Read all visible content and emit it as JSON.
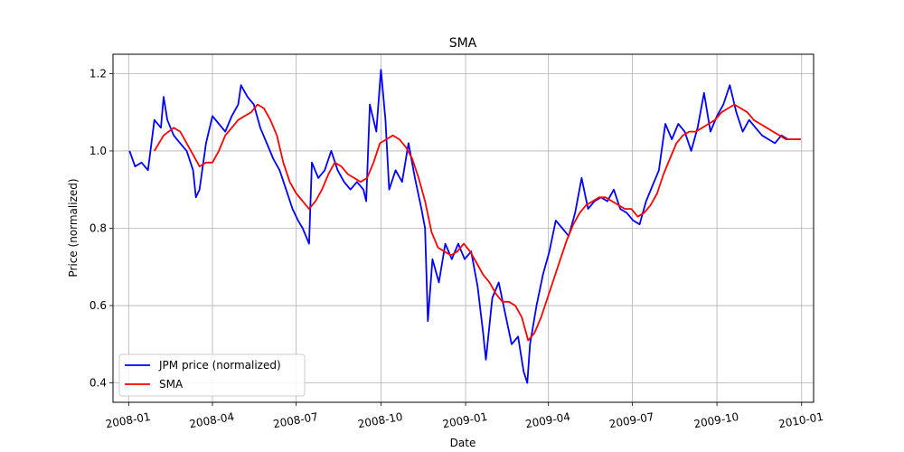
{
  "chart_data": {
    "type": "line",
    "title": "SMA",
    "xlabel": "Date",
    "ylabel": "Price (normalized)",
    "xlim": [
      "2007-12-15",
      "2010-01-14"
    ],
    "ylim": [
      0.35,
      1.25
    ],
    "x_ticks": [
      "2008-01",
      "2008-04",
      "2008-07",
      "2008-10",
      "2009-01",
      "2009-04",
      "2009-07",
      "2009-10",
      "2010-01"
    ],
    "y_ticks": [
      "0.4",
      "0.6",
      "0.8",
      "1.0",
      "1.2"
    ],
    "grid": true,
    "legend_position": "lower-left",
    "series": [
      {
        "name": "JPM price (normalized)",
        "color": "#0000ff",
        "points": [
          [
            "2008-01-02",
            1.0
          ],
          [
            "2008-01-08",
            0.96
          ],
          [
            "2008-01-15",
            0.97
          ],
          [
            "2008-01-22",
            0.95
          ],
          [
            "2008-01-29",
            1.08
          ],
          [
            "2008-02-05",
            1.06
          ],
          [
            "2008-02-08",
            1.14
          ],
          [
            "2008-02-12",
            1.08
          ],
          [
            "2008-02-19",
            1.04
          ],
          [
            "2008-02-26",
            1.02
          ],
          [
            "2008-03-04",
            1.0
          ],
          [
            "2008-03-11",
            0.95
          ],
          [
            "2008-03-14",
            0.88
          ],
          [
            "2008-03-18",
            0.9
          ],
          [
            "2008-03-25",
            1.02
          ],
          [
            "2008-04-01",
            1.09
          ],
          [
            "2008-04-08",
            1.07
          ],
          [
            "2008-04-15",
            1.05
          ],
          [
            "2008-04-22",
            1.09
          ],
          [
            "2008-04-29",
            1.12
          ],
          [
            "2008-05-02",
            1.17
          ],
          [
            "2008-05-09",
            1.14
          ],
          [
            "2008-05-16",
            1.12
          ],
          [
            "2008-05-23",
            1.06
          ],
          [
            "2008-05-30",
            1.02
          ],
          [
            "2008-06-06",
            0.98
          ],
          [
            "2008-06-13",
            0.95
          ],
          [
            "2008-06-20",
            0.9
          ],
          [
            "2008-06-27",
            0.85
          ],
          [
            "2008-07-03",
            0.82
          ],
          [
            "2008-07-08",
            0.8
          ],
          [
            "2008-07-15",
            0.76
          ],
          [
            "2008-07-18",
            0.97
          ],
          [
            "2008-07-25",
            0.93
          ],
          [
            "2008-08-01",
            0.95
          ],
          [
            "2008-08-08",
            1.0
          ],
          [
            "2008-08-15",
            0.95
          ],
          [
            "2008-08-22",
            0.92
          ],
          [
            "2008-08-29",
            0.9
          ],
          [
            "2008-09-05",
            0.92
          ],
          [
            "2008-09-12",
            0.9
          ],
          [
            "2008-09-15",
            0.87
          ],
          [
            "2008-09-19",
            1.12
          ],
          [
            "2008-09-26",
            1.05
          ],
          [
            "2008-10-01",
            1.21
          ],
          [
            "2008-10-06",
            1.08
          ],
          [
            "2008-10-10",
            0.9
          ],
          [
            "2008-10-17",
            0.95
          ],
          [
            "2008-10-24",
            0.92
          ],
          [
            "2008-10-31",
            1.02
          ],
          [
            "2008-11-07",
            0.93
          ],
          [
            "2008-11-14",
            0.85
          ],
          [
            "2008-11-18",
            0.8
          ],
          [
            "2008-11-21",
            0.56
          ],
          [
            "2008-11-26",
            0.72
          ],
          [
            "2008-12-03",
            0.66
          ],
          [
            "2008-12-10",
            0.76
          ],
          [
            "2008-12-17",
            0.72
          ],
          [
            "2008-12-24",
            0.76
          ],
          [
            "2008-12-31",
            0.72
          ],
          [
            "2009-01-07",
            0.74
          ],
          [
            "2009-01-14",
            0.65
          ],
          [
            "2009-01-20",
            0.53
          ],
          [
            "2009-01-23",
            0.46
          ],
          [
            "2009-01-30",
            0.62
          ],
          [
            "2009-02-06",
            0.66
          ],
          [
            "2009-02-13",
            0.58
          ],
          [
            "2009-02-20",
            0.5
          ],
          [
            "2009-02-27",
            0.52
          ],
          [
            "2009-03-05",
            0.43
          ],
          [
            "2009-03-09",
            0.4
          ],
          [
            "2009-03-12",
            0.5
          ],
          [
            "2009-03-19",
            0.6
          ],
          [
            "2009-03-26",
            0.68
          ],
          [
            "2009-04-02",
            0.74
          ],
          [
            "2009-04-09",
            0.82
          ],
          [
            "2009-04-16",
            0.8
          ],
          [
            "2009-04-23",
            0.78
          ],
          [
            "2009-04-30",
            0.84
          ],
          [
            "2009-05-07",
            0.93
          ],
          [
            "2009-05-14",
            0.85
          ],
          [
            "2009-05-21",
            0.87
          ],
          [
            "2009-05-28",
            0.88
          ],
          [
            "2009-06-04",
            0.87
          ],
          [
            "2009-06-11",
            0.9
          ],
          [
            "2009-06-18",
            0.85
          ],
          [
            "2009-06-25",
            0.84
          ],
          [
            "2009-07-02",
            0.82
          ],
          [
            "2009-07-09",
            0.81
          ],
          [
            "2009-07-16",
            0.87
          ],
          [
            "2009-07-23",
            0.91
          ],
          [
            "2009-07-30",
            0.95
          ],
          [
            "2009-08-06",
            1.07
          ],
          [
            "2009-08-13",
            1.03
          ],
          [
            "2009-08-20",
            1.07
          ],
          [
            "2009-08-27",
            1.05
          ],
          [
            "2009-09-03",
            1.0
          ],
          [
            "2009-09-10",
            1.06
          ],
          [
            "2009-09-17",
            1.15
          ],
          [
            "2009-09-24",
            1.05
          ],
          [
            "2009-10-01",
            1.09
          ],
          [
            "2009-10-08",
            1.12
          ],
          [
            "2009-10-15",
            1.17
          ],
          [
            "2009-10-22",
            1.1
          ],
          [
            "2009-10-29",
            1.05
          ],
          [
            "2009-11-05",
            1.08
          ],
          [
            "2009-11-12",
            1.06
          ],
          [
            "2009-11-19",
            1.04
          ],
          [
            "2009-11-26",
            1.03
          ],
          [
            "2009-12-03",
            1.02
          ],
          [
            "2009-12-10",
            1.04
          ],
          [
            "2009-12-17",
            1.03
          ],
          [
            "2009-12-31",
            1.03
          ]
        ]
      },
      {
        "name": "SMA",
        "color": "#ff0000",
        "points": [
          [
            "2008-01-29",
            1.0
          ],
          [
            "2008-02-08",
            1.04
          ],
          [
            "2008-02-19",
            1.06
          ],
          [
            "2008-02-26",
            1.05
          ],
          [
            "2008-03-04",
            1.02
          ],
          [
            "2008-03-11",
            0.99
          ],
          [
            "2008-03-18",
            0.96
          ],
          [
            "2008-03-25",
            0.97
          ],
          [
            "2008-04-01",
            0.97
          ],
          [
            "2008-04-08",
            1.0
          ],
          [
            "2008-04-15",
            1.04
          ],
          [
            "2008-04-22",
            1.06
          ],
          [
            "2008-04-29",
            1.08
          ],
          [
            "2008-05-06",
            1.09
          ],
          [
            "2008-05-13",
            1.1
          ],
          [
            "2008-05-20",
            1.12
          ],
          [
            "2008-05-27",
            1.11
          ],
          [
            "2008-06-03",
            1.08
          ],
          [
            "2008-06-10",
            1.04
          ],
          [
            "2008-06-17",
            0.97
          ],
          [
            "2008-06-24",
            0.92
          ],
          [
            "2008-07-01",
            0.89
          ],
          [
            "2008-07-08",
            0.87
          ],
          [
            "2008-07-15",
            0.85
          ],
          [
            "2008-07-22",
            0.87
          ],
          [
            "2008-07-29",
            0.9
          ],
          [
            "2008-08-05",
            0.94
          ],
          [
            "2008-08-12",
            0.97
          ],
          [
            "2008-08-19",
            0.96
          ],
          [
            "2008-08-26",
            0.94
          ],
          [
            "2008-09-02",
            0.93
          ],
          [
            "2008-09-09",
            0.92
          ],
          [
            "2008-09-16",
            0.93
          ],
          [
            "2008-09-23",
            0.97
          ],
          [
            "2008-09-30",
            1.02
          ],
          [
            "2008-10-07",
            1.03
          ],
          [
            "2008-10-14",
            1.04
          ],
          [
            "2008-10-21",
            1.03
          ],
          [
            "2008-10-28",
            1.01
          ],
          [
            "2008-11-04",
            0.98
          ],
          [
            "2008-11-11",
            0.93
          ],
          [
            "2008-11-18",
            0.87
          ],
          [
            "2008-11-25",
            0.79
          ],
          [
            "2008-12-02",
            0.75
          ],
          [
            "2008-12-09",
            0.74
          ],
          [
            "2008-12-16",
            0.73
          ],
          [
            "2008-12-23",
            0.74
          ],
          [
            "2008-12-30",
            0.76
          ],
          [
            "2009-01-06",
            0.74
          ],
          [
            "2009-01-13",
            0.71
          ],
          [
            "2009-01-20",
            0.68
          ],
          [
            "2009-01-27",
            0.66
          ],
          [
            "2009-02-03",
            0.63
          ],
          [
            "2009-02-10",
            0.61
          ],
          [
            "2009-02-17",
            0.61
          ],
          [
            "2009-02-24",
            0.6
          ],
          [
            "2009-03-03",
            0.57
          ],
          [
            "2009-03-10",
            0.51
          ],
          [
            "2009-03-17",
            0.53
          ],
          [
            "2009-03-24",
            0.57
          ],
          [
            "2009-03-31",
            0.62
          ],
          [
            "2009-04-07",
            0.67
          ],
          [
            "2009-04-14",
            0.72
          ],
          [
            "2009-04-21",
            0.77
          ],
          [
            "2009-04-28",
            0.81
          ],
          [
            "2009-05-05",
            0.84
          ],
          [
            "2009-05-12",
            0.86
          ],
          [
            "2009-05-19",
            0.87
          ],
          [
            "2009-05-26",
            0.88
          ],
          [
            "2009-06-02",
            0.88
          ],
          [
            "2009-06-09",
            0.87
          ],
          [
            "2009-06-16",
            0.86
          ],
          [
            "2009-06-23",
            0.85
          ],
          [
            "2009-06-30",
            0.85
          ],
          [
            "2009-07-07",
            0.83
          ],
          [
            "2009-07-14",
            0.84
          ],
          [
            "2009-07-21",
            0.86
          ],
          [
            "2009-07-28",
            0.89
          ],
          [
            "2009-08-04",
            0.94
          ],
          [
            "2009-08-11",
            0.98
          ],
          [
            "2009-08-18",
            1.02
          ],
          [
            "2009-08-25",
            1.04
          ],
          [
            "2009-09-01",
            1.05
          ],
          [
            "2009-09-08",
            1.05
          ],
          [
            "2009-09-15",
            1.06
          ],
          [
            "2009-09-22",
            1.07
          ],
          [
            "2009-09-29",
            1.08
          ],
          [
            "2009-10-06",
            1.1
          ],
          [
            "2009-10-13",
            1.11
          ],
          [
            "2009-10-20",
            1.12
          ],
          [
            "2009-10-27",
            1.11
          ],
          [
            "2009-11-03",
            1.1
          ],
          [
            "2009-11-10",
            1.08
          ],
          [
            "2009-11-17",
            1.07
          ],
          [
            "2009-11-24",
            1.06
          ],
          [
            "2009-12-01",
            1.05
          ],
          [
            "2009-12-08",
            1.04
          ],
          [
            "2009-12-15",
            1.03
          ],
          [
            "2009-12-22",
            1.03
          ],
          [
            "2009-12-31",
            1.03
          ]
        ]
      }
    ]
  }
}
